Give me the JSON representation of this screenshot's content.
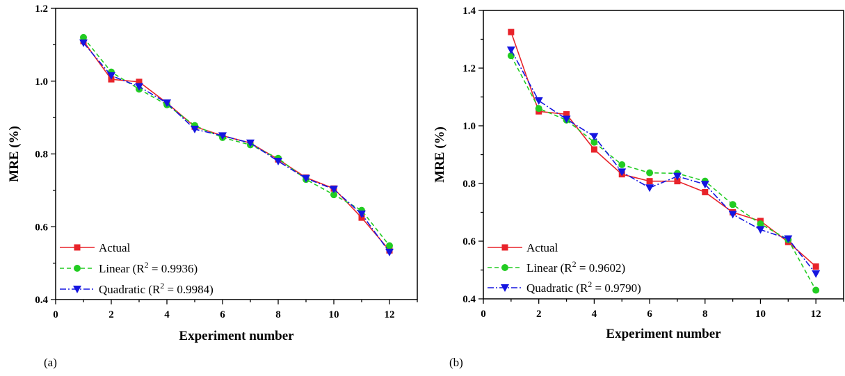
{
  "chart_data": [
    {
      "type": "line",
      "panel_label": "(a)",
      "xlabel": "Experiment number",
      "ylabel": "MRE (%)",
      "xlim": [
        0,
        13
      ],
      "ylim": [
        0.4,
        1.2
      ],
      "xticks": [
        0,
        2,
        4,
        6,
        8,
        10,
        12
      ],
      "yticks": [
        0.4,
        0.6,
        0.8,
        1.0,
        1.2
      ],
      "ytick_labels": [
        "0.4",
        "0.6",
        "0.8",
        "1.0",
        "1.2"
      ],
      "grid": false,
      "legend_position": "bottom-left",
      "x": [
        1,
        2,
        3,
        4,
        5,
        6,
        7,
        8,
        9,
        10,
        11,
        12
      ],
      "series": [
        {
          "name": "Actual",
          "r2": "",
          "values": [
            1.11,
            1.005,
            0.998,
            0.94,
            0.875,
            0.85,
            0.83,
            0.785,
            0.735,
            0.705,
            0.625,
            0.535
          ]
        },
        {
          "name": "Linear",
          "r2": "0.9936",
          "values": [
            1.12,
            1.025,
            0.978,
            0.935,
            0.878,
            0.845,
            0.825,
            0.788,
            0.73,
            0.688,
            0.645,
            0.548
          ]
        },
        {
          "name": "Quadratic",
          "r2": "0.9984",
          "values": [
            1.105,
            1.015,
            0.985,
            0.94,
            0.868,
            0.85,
            0.83,
            0.78,
            0.733,
            0.703,
            0.635,
            0.53
          ]
        }
      ]
    },
    {
      "type": "line",
      "panel_label": "(b)",
      "xlabel": "Experiment number",
      "ylabel": "MRE (%)",
      "xlim": [
        0,
        13
      ],
      "ylim": [
        0.4,
        1.4
      ],
      "xticks": [
        0,
        2,
        4,
        6,
        8,
        10,
        12
      ],
      "yticks": [
        0.4,
        0.6,
        0.8,
        1.0,
        1.2,
        1.4
      ],
      "ytick_labels": [
        "0.4",
        "0.6",
        "0.8",
        "1.0",
        "1.2",
        "1.4"
      ],
      "grid": false,
      "legend_position": "bottom-left",
      "x": [
        1,
        2,
        3,
        4,
        5,
        6,
        7,
        8,
        9,
        10,
        11,
        12
      ],
      "series": [
        {
          "name": "Actual",
          "r2": "",
          "values": [
            1.325,
            1.05,
            1.04,
            0.918,
            0.832,
            0.808,
            0.808,
            0.77,
            0.7,
            0.67,
            0.597,
            0.512
          ]
        },
        {
          "name": "Linear",
          "r2": "0.9602",
          "values": [
            1.243,
            1.06,
            1.02,
            0.943,
            0.865,
            0.837,
            0.835,
            0.808,
            0.727,
            0.66,
            0.605,
            0.43
          ]
        },
        {
          "name": "Quadratic",
          "r2": "0.9790",
          "values": [
            1.263,
            1.087,
            1.023,
            0.963,
            0.84,
            0.785,
            0.825,
            0.797,
            0.693,
            0.64,
            0.608,
            0.487
          ]
        }
      ]
    }
  ],
  "legend": {
    "prefix": "(R",
    "sup": "2",
    "eq": " = ",
    "suffix": ")"
  },
  "colors": {
    "Actual": "#e8232a",
    "Linear": "#22cc22",
    "Quadratic": "#1515e0"
  },
  "dash": {
    "Actual": "",
    "Linear": "6 4",
    "Quadratic": "9 3 2 3"
  },
  "markers": {
    "Actual": "square",
    "Linear": "circle",
    "Quadratic": "triangle-down"
  }
}
